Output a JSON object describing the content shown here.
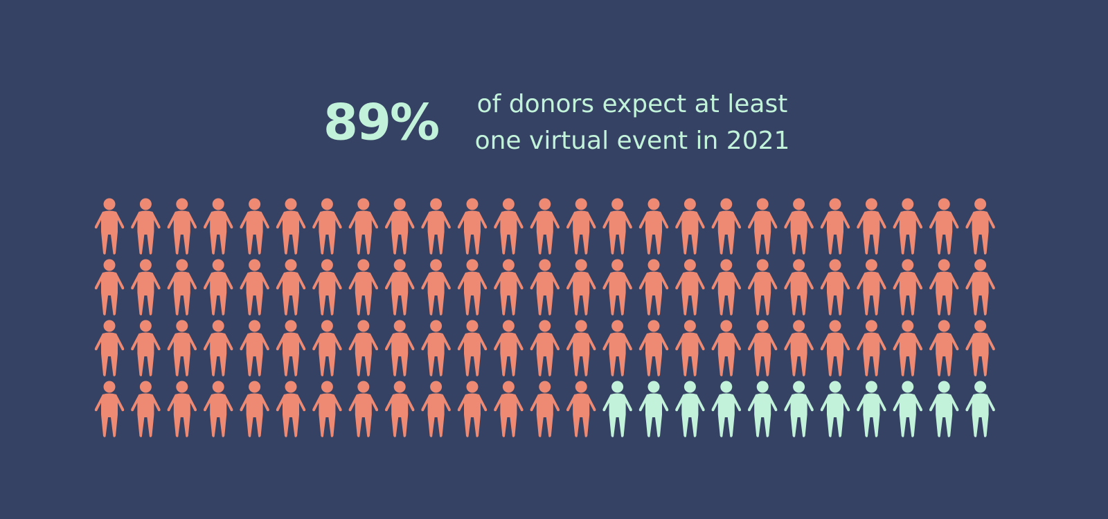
{
  "chart_data": {
    "type": "pictogram",
    "values": [
      89,
      11
    ],
    "value_labels": [
      "89%",
      null
    ],
    "colors": [
      "#ee8a73",
      "#c2f3da"
    ],
    "subtitle_lines": [
      "of donors expect at least",
      "one virtual event in 2021"
    ]
  }
}
